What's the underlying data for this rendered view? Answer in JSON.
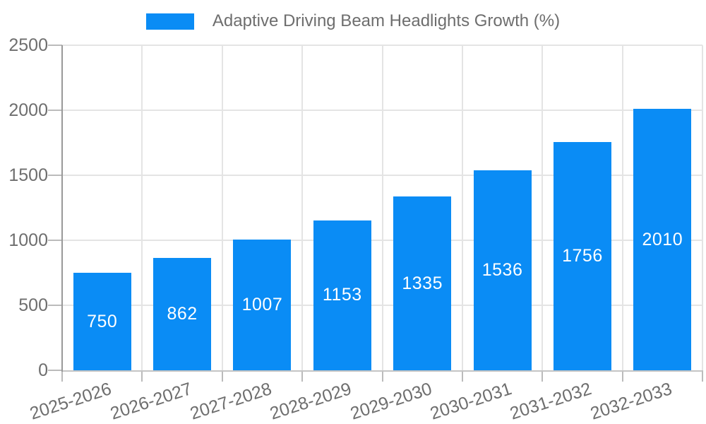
{
  "legend": {
    "label": "Adaptive Driving Beam Headlights Growth (%)"
  },
  "chart_data": {
    "type": "bar",
    "title": "Adaptive Driving Beam Headlights Growth (%)",
    "categories": [
      "2025-2026",
      "2026-2027",
      "2027-2028",
      "2028-2029",
      "2029-2030",
      "2030-2031",
      "2031-2032",
      "2032-2033"
    ],
    "values": [
      750,
      862,
      1007,
      1153,
      1335,
      1536,
      1756,
      2010
    ],
    "bar_value_labels": [
      "750",
      "862",
      "1007",
      "1153",
      "1335",
      "1536",
      "1756",
      "2010"
    ],
    "xlabel": "",
    "ylabel": "",
    "ylim": [
      0,
      2500
    ],
    "yticks": [
      0,
      500,
      1000,
      1500,
      2000,
      2500
    ],
    "ytick_labels": [
      "0",
      "500",
      "1000",
      "1500",
      "2000",
      "2500"
    ],
    "grid": true,
    "legend_position": "top-center"
  },
  "colors": {
    "bar": "#0a8cf5",
    "bar_label": "#ffffff",
    "text": "#6e6e6e",
    "grid": "#e4e4e4",
    "y_axis_line": "#999999",
    "x_axis_line": "#c4c4c4",
    "tick": "#bbbbbb",
    "background": "#ffffff"
  }
}
